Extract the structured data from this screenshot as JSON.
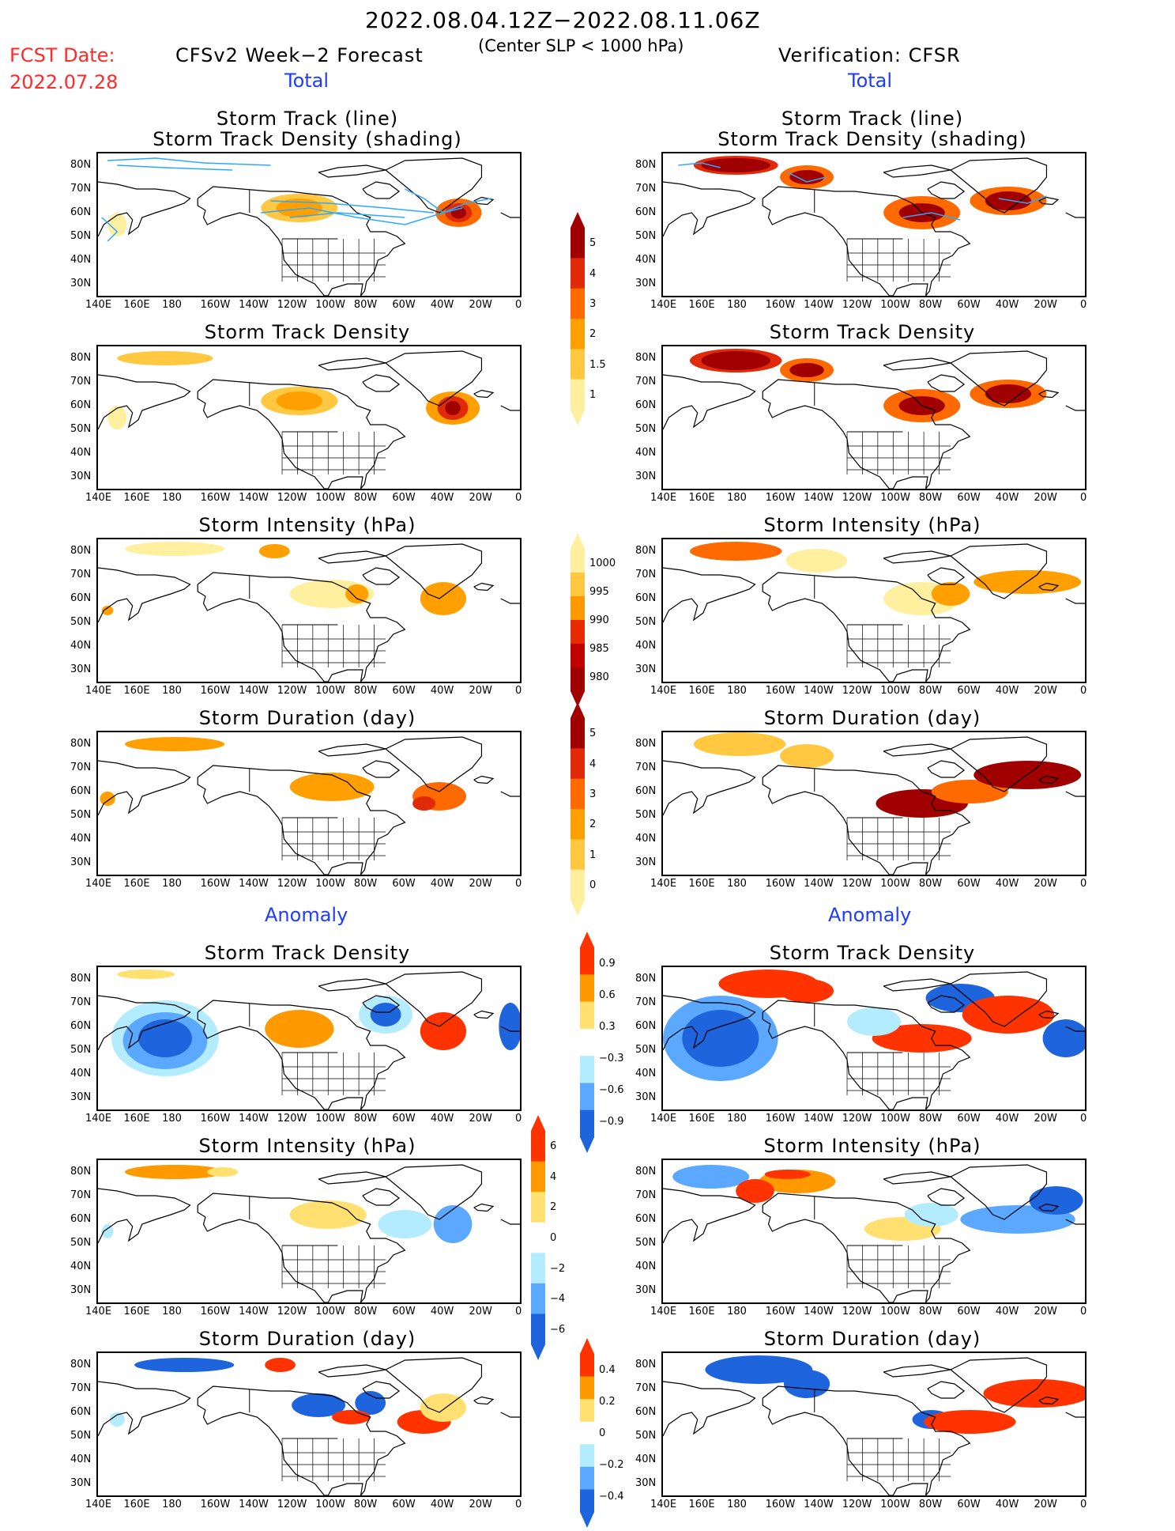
{
  "header": {
    "date_range": "2022.08.04.12Z−2022.08.11.06Z",
    "criterion": "(Center SLP < 1000 hPa)",
    "fcst_label": "FCST Date:",
    "fcst_date": "2022.07.28",
    "left_title": "CFSv2 Week−2 Forecast",
    "right_title": "Verification: CFSR",
    "total_label": "Total",
    "anomaly_label": "Anomaly"
  },
  "panel_titles": {
    "track_line": "Storm Track (line)",
    "track_shading": "Storm Track Density (shading)",
    "density": "Storm Track Density",
    "intensity": "Storm Intensity (hPa)",
    "duration": "Storm Duration (day)"
  },
  "axes": {
    "lat_labels": [
      "80N",
      "70N",
      "60N",
      "50N",
      "40N",
      "30N"
    ],
    "lon_labels": [
      "140E",
      "160E",
      "180",
      "160W",
      "140W",
      "120W",
      "100W",
      "80W",
      "60W",
      "40W",
      "20W",
      "0"
    ]
  },
  "colorbars": {
    "density_total": {
      "labels": [
        "5",
        "4",
        "3",
        "2",
        "1.5",
        "1"
      ],
      "colors": [
        "#a00000",
        "#e02a0a",
        "#ff6a00",
        "#ffa000",
        "#ffc840",
        "#fff0a0"
      ]
    },
    "intensity_total": {
      "labels": [
        "1000",
        "995",
        "990",
        "985",
        "980"
      ],
      "colors": [
        "#fff0a0",
        "#ffc840",
        "#ff9900",
        "#e82a00",
        "#c00000",
        "#a00000"
      ]
    },
    "duration_total": {
      "labels": [
        "5",
        "4",
        "3",
        "2",
        "1",
        "0"
      ],
      "colors": [
        "#a00000",
        "#e02a0a",
        "#ff6a00",
        "#ffa000",
        "#ffc840",
        "#fff0a0"
      ]
    },
    "density_anom": {
      "labels": [
        "0.9",
        "0.6",
        "0.3",
        "−0.3",
        "−0.6",
        "−0.9"
      ],
      "colors": [
        "#ff3300",
        "#ff9900",
        "#ffe070",
        "#ffffff",
        "#b4ecff",
        "#5aa8ff",
        "#1e64dc"
      ]
    },
    "intensity_anom": {
      "labels": [
        "6",
        "4",
        "2",
        "0",
        "−2",
        "−4",
        "−6"
      ],
      "colors": [
        "#ff3300",
        "#ff9900",
        "#ffe070",
        "#ffffff",
        "#b4ecff",
        "#5aa8ff",
        "#1e64dc"
      ]
    },
    "duration_anom": {
      "labels": [
        "0.4",
        "0.2",
        "0",
        "−0.2",
        "−0.4"
      ],
      "colors": [
        "#ff3300",
        "#ff9900",
        "#ffe070",
        "#ffffff",
        "#b4ecff",
        "#5aa8ff",
        "#1e64dc"
      ]
    }
  }
}
